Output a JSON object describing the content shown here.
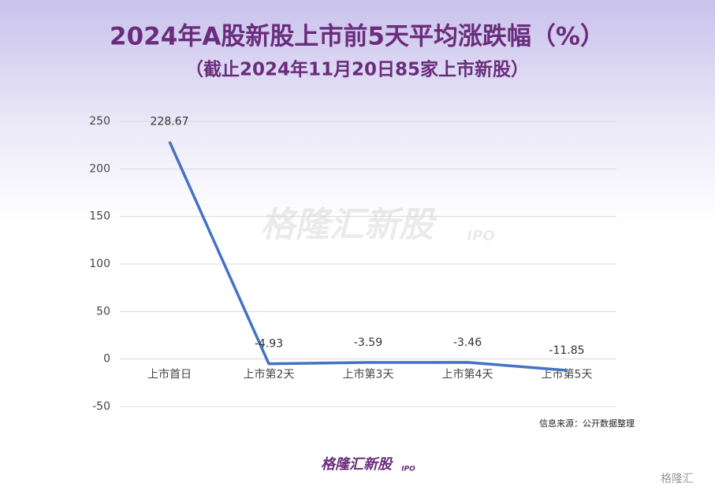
{
  "chart_data": {
    "type": "line",
    "title": "2024年A股新股上市前5天平均涨跌幅（%）",
    "subtitle": "（截止2024年11月20日85家上市新股）",
    "categories": [
      "上市首日",
      "上市第2天",
      "上市第3天",
      "上市第4天",
      "上市第5天"
    ],
    "values": [
      228.67,
      -4.93,
      -3.59,
      -3.46,
      -11.85
    ],
    "color": "#4472c4",
    "ylim": [
      -50,
      250
    ],
    "yticks": [
      -50,
      0,
      50,
      100,
      150,
      200,
      250
    ],
    "grid": true,
    "source": "信息来源：公开数据整理",
    "watermark": {
      "text": "格隆汇新股",
      "sub": "IPO"
    },
    "footer_logo": {
      "text": "格隆汇新股",
      "sub": "IPO"
    },
    "corner_logo": "格隆汇"
  }
}
